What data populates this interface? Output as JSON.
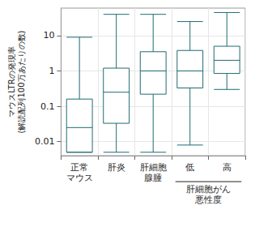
{
  "chart_data": {
    "type": "boxplot",
    "y_label": "マウスLTRの発現率\n(解読配列100万あたりの数)",
    "categories": [
      "正常\nマウス",
      "肝炎",
      "肝細胞\n腺腫",
      "低",
      "高"
    ],
    "values": [
      [
        0.005,
        0.005,
        0.025,
        0.16,
        9
      ],
      [
        0.005,
        0.033,
        0.25,
        1.2,
        40
      ],
      [
        0.005,
        0.22,
        1.0,
        3.5,
        40
      ],
      [
        0.008,
        0.33,
        1.0,
        3.8,
        25
      ],
      [
        0.3,
        0.85,
        2.0,
        5.0,
        45
      ]
    ],
    "color": "#1f6b73",
    "group_label": {
      "text": "肝細胞がん\n悪性度",
      "span": [
        "低",
        "高"
      ]
    },
    "ylim": [
      0.004,
      60
    ],
    "yticks": [
      0.01,
      0.1,
      1,
      10
    ],
    "log": "y",
    "grid": true
  }
}
